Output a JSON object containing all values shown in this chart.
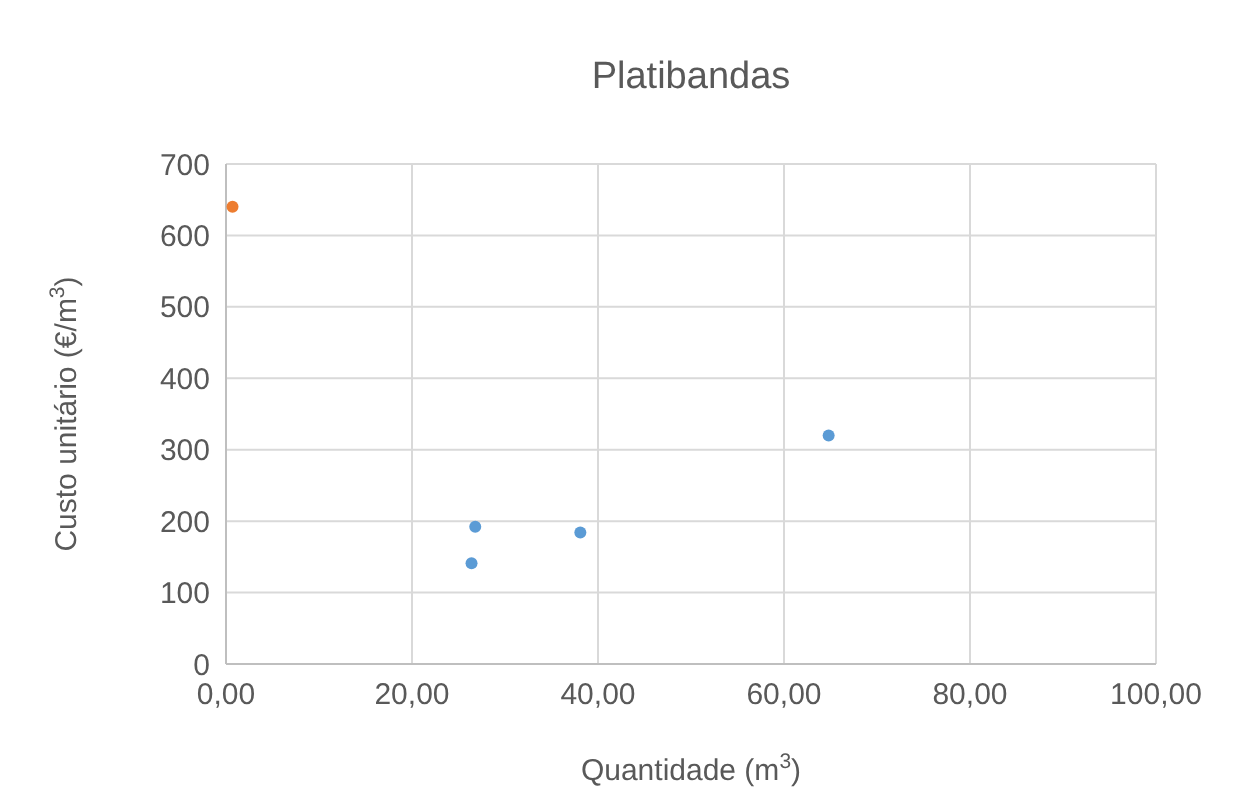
{
  "chart_data": {
    "type": "scatter",
    "title": "Platibandas",
    "xlabel": "Quantidade (m$^{3}$)",
    "ylabel": "Custo unitário (€/m$^{3}$)",
    "series": [
      {
        "color": "#5b9bd5",
        "x": [
          26.8,
          26.4,
          38.1,
          64.8
        ],
        "values": [
          192,
          141,
          184,
          320
        ]
      },
      {
        "color": "#ed7d31",
        "x": [
          0.7
        ],
        "values": [
          640
        ]
      }
    ],
    "xlim": [
      0,
      100
    ],
    "xticks": [
      {
        "value": 0,
        "label": "0,00"
      },
      {
        "value": 20,
        "label": "20,00"
      },
      {
        "value": 40,
        "label": "40,00"
      },
      {
        "value": 60,
        "label": "60,00"
      },
      {
        "value": 80,
        "label": "80,00"
      },
      {
        "value": 100,
        "label": "100,00"
      }
    ],
    "ylim": [
      0,
      700
    ],
    "yticks": [
      0,
      100,
      200,
      300,
      400,
      500,
      600,
      700
    ],
    "grid": true,
    "marker": "circle"
  }
}
